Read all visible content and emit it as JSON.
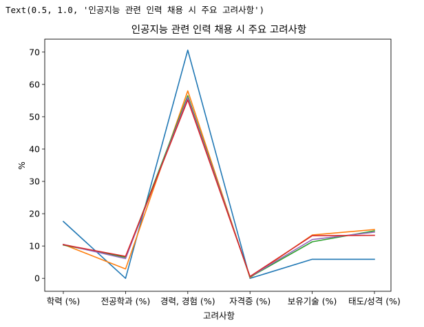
{
  "repr_text": "Text(0.5, 1.0, '인공지능 관련 인력 채용 시 주요 고려사항')",
  "chart_data": {
    "type": "line",
    "title": "인공지능 관련 인력 채용 시 주요 고려사항",
    "xlabel": "고려사항",
    "ylabel": "%",
    "categories": [
      "학력 (%)",
      "전공학과 (%)",
      "경력, 경험 (%)",
      "자격증 (%)",
      "보유기술 (%)",
      "태도/성격 (%)"
    ],
    "ylim": [
      -4,
      74
    ],
    "yticks": [
      0,
      10,
      20,
      30,
      40,
      50,
      60,
      70
    ],
    "grid": false,
    "series": [
      {
        "color": "#1f77b4",
        "values": [
          17.6,
          0.0,
          70.6,
          0.0,
          5.9,
          5.9
        ]
      },
      {
        "color": "#ff7f0e",
        "values": [
          10.5,
          2.9,
          58.0,
          0.2,
          13.4,
          15.1
        ]
      },
      {
        "color": "#2ca02c",
        "values": [
          10.3,
          6.5,
          56.5,
          0.4,
          11.3,
          14.7
        ]
      },
      {
        "color": "#9467bd",
        "values": [
          10.5,
          6.1,
          56.0,
          0.5,
          12.0,
          14.3
        ]
      },
      {
        "color": "#d62728",
        "values": [
          10.4,
          6.8,
          55.2,
          0.6,
          13.2,
          13.3
        ]
      }
    ]
  }
}
